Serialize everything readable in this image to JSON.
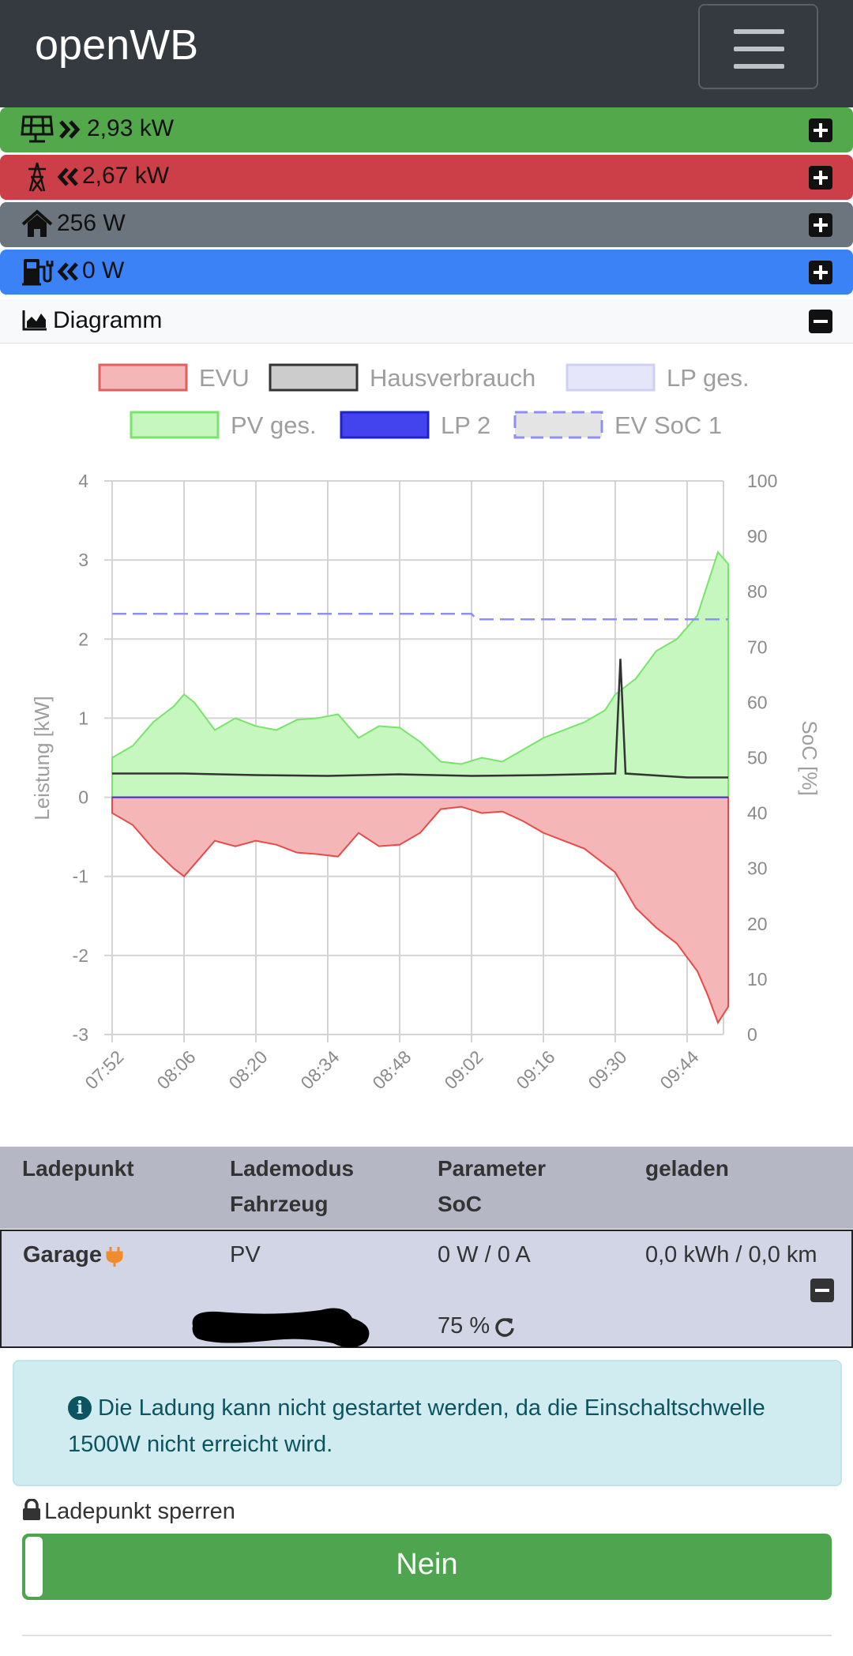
{
  "app": {
    "title": "openWB"
  },
  "summary": {
    "pv": {
      "value": "2,93 kW",
      "color": "#54a84c",
      "icon": "solar-panel-icon"
    },
    "grid": {
      "value": "2,67 kW",
      "color": "#cc3f48",
      "icon": "power-tower-icon"
    },
    "house": {
      "value": "256 W",
      "color": "#6c757d",
      "icon": "home-icon"
    },
    "charge": {
      "value": "0 W",
      "color": "#3b82f6",
      "icon": "ev-charger-icon"
    }
  },
  "diagram": {
    "label": "Diagramm"
  },
  "chart_data": {
    "type": "area",
    "legend": [
      "EVU",
      "Hausverbrauch",
      "LP ges.",
      "PV ges.",
      "LP 2",
      "EV SoC 1"
    ],
    "x_ticks": [
      "07:52",
      "08:06",
      "08:20",
      "08:34",
      "08:48",
      "09:02",
      "09:16",
      "09:30",
      "09:44"
    ],
    "ylabel": "Leistung [kW]",
    "y2label": "SoC [%]",
    "ylim": [
      -3,
      4
    ],
    "y2lim": [
      0,
      100
    ],
    "y_ticks": [
      "4",
      "3",
      "2",
      "1",
      "0",
      "-1",
      "-2",
      "-3"
    ],
    "y2_ticks": [
      "100",
      "90",
      "80",
      "70",
      "60",
      "50",
      "40",
      "30",
      "20",
      "10",
      "0"
    ],
    "grid": true,
    "legend_position": "top",
    "colors": {
      "EVU": "#f27f7f",
      "Hausverbrauch": "#333333",
      "LP ges.": "#d8d8ff",
      "PV ges.": "#79e36d",
      "LP 2": "#3333ee",
      "EV SoC 1": "#8f8ff2"
    },
    "series": [
      {
        "name": "PV ges.",
        "x": [
          "07:52",
          "07:56",
          "08:00",
          "08:04",
          "08:06",
          "08:08",
          "08:12",
          "08:16",
          "08:20",
          "08:24",
          "08:28",
          "08:32",
          "08:36",
          "08:40",
          "08:44",
          "08:48",
          "08:52",
          "08:56",
          "09:00",
          "09:04",
          "09:08",
          "09:12",
          "09:16",
          "09:20",
          "09:24",
          "09:28",
          "09:30",
          "09:34",
          "09:38",
          "09:42",
          "09:46",
          "09:48",
          "09:50",
          "09:52"
        ],
        "values": [
          0.5,
          0.65,
          0.95,
          1.15,
          1.3,
          1.2,
          0.85,
          1.0,
          0.9,
          0.85,
          0.98,
          1.0,
          1.05,
          0.75,
          0.9,
          0.88,
          0.7,
          0.45,
          0.42,
          0.5,
          0.45,
          0.6,
          0.75,
          0.85,
          0.95,
          1.1,
          1.3,
          1.5,
          1.85,
          2.0,
          2.3,
          2.7,
          3.1,
          2.95
        ]
      },
      {
        "name": "EVU",
        "x": [
          "07:52",
          "07:56",
          "08:00",
          "08:04",
          "08:06",
          "08:08",
          "08:12",
          "08:16",
          "08:20",
          "08:24",
          "08:28",
          "08:32",
          "08:36",
          "08:40",
          "08:44",
          "08:48",
          "08:52",
          "08:56",
          "09:00",
          "09:04",
          "09:08",
          "09:12",
          "09:16",
          "09:20",
          "09:24",
          "09:28",
          "09:30",
          "09:34",
          "09:38",
          "09:42",
          "09:46",
          "09:48",
          "09:50",
          "09:52"
        ],
        "values": [
          -0.2,
          -0.35,
          -0.65,
          -0.9,
          -1.0,
          -0.85,
          -0.55,
          -0.62,
          -0.55,
          -0.6,
          -0.7,
          -0.72,
          -0.75,
          -0.45,
          -0.62,
          -0.6,
          -0.45,
          -0.15,
          -0.12,
          -0.2,
          -0.18,
          -0.3,
          -0.45,
          -0.55,
          -0.65,
          -0.85,
          -0.95,
          -1.4,
          -1.65,
          -1.85,
          -2.2,
          -2.5,
          -2.85,
          -2.65
        ]
      },
      {
        "name": "Hausverbrauch",
        "x": [
          "07:52",
          "08:06",
          "08:20",
          "08:34",
          "08:48",
          "09:02",
          "09:16",
          "09:30",
          "09:31",
          "09:32",
          "09:44",
          "09:52"
        ],
        "values": [
          0.3,
          0.3,
          0.28,
          0.27,
          0.29,
          0.27,
          0.28,
          0.3,
          1.75,
          0.3,
          0.25,
          0.25
        ]
      },
      {
        "name": "LP 2",
        "x": [
          "07:52",
          "09:52"
        ],
        "values": [
          0,
          0
        ]
      },
      {
        "name": "EV SoC 1",
        "axis": "y2",
        "x": [
          "07:52",
          "09:02",
          "09:03",
          "09:52"
        ],
        "values": [
          76,
          76,
          75,
          75
        ]
      }
    ]
  },
  "table": {
    "headers": {
      "col1": "Ladepunkt",
      "col2a": "Lademodus",
      "col2b": "Fahrzeug",
      "col3a": "Parameter",
      "col3b": "SoC",
      "col4": "geladen"
    },
    "row": {
      "name": "Garage",
      "mode": "PV",
      "param": "0 W / 0 A",
      "charged": "0,0 kWh / 0,0 km",
      "soc": "75 %"
    }
  },
  "alert": {
    "text": "Die Ladung kann nicht gestartet werden, da die Einschaltschwelle 1500W nicht erreicht wird."
  },
  "lock": {
    "label": "Ladepunkt sperren",
    "toggle_label": "Nein"
  }
}
